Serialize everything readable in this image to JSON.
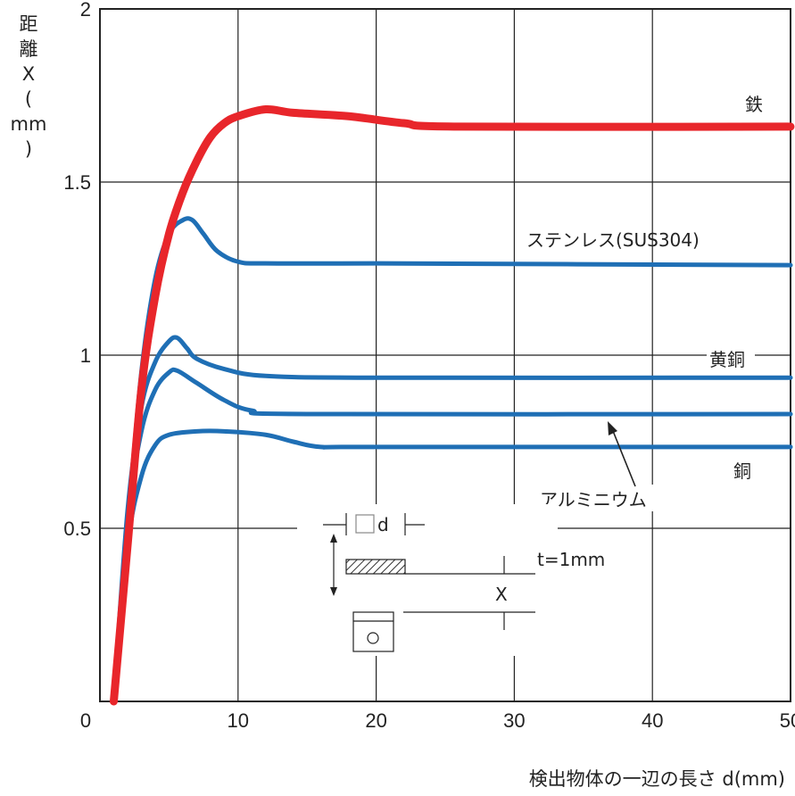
{
  "chart_data": {
    "type": "line",
    "xlabel": "検出物体の一辺の長さ d(mm)",
    "ylabel_lines": [
      "距",
      "離",
      "X",
      "(",
      "mm",
      ")"
    ],
    "xlim": [
      0,
      50
    ],
    "ylim": [
      0,
      2
    ],
    "x_ticks": [
      0,
      10,
      20,
      30,
      40,
      50
    ],
    "y_ticks": [
      {
        "v": 0.5,
        "label": "0.5"
      },
      {
        "v": 1,
        "label": "1"
      },
      {
        "v": 1.5,
        "label": "1.5"
      },
      {
        "v": 2,
        "label": "2"
      }
    ],
    "grid": true,
    "series": [
      {
        "name": "鉄",
        "color": "#e8262b",
        "points": [
          [
            1,
            0
          ],
          [
            2,
            0.45
          ],
          [
            3,
            0.9
          ],
          [
            4,
            1.17
          ],
          [
            5,
            1.35
          ],
          [
            6,
            1.47
          ],
          [
            7,
            1.56
          ],
          [
            8,
            1.63
          ],
          [
            9,
            1.67
          ],
          [
            10,
            1.69
          ],
          [
            12,
            1.71
          ],
          [
            14,
            1.7
          ],
          [
            18,
            1.69
          ],
          [
            22,
            1.67
          ],
          [
            26,
            1.66
          ],
          [
            50,
            1.66
          ]
        ]
      },
      {
        "name": "ステンレス(SUS304)",
        "color": "#1f6fb5",
        "points": [
          [
            1,
            0
          ],
          [
            2,
            0.5
          ],
          [
            3,
            0.95
          ],
          [
            4,
            1.22
          ],
          [
            5,
            1.35
          ],
          [
            6,
            1.39
          ],
          [
            6.7,
            1.39
          ],
          [
            7.5,
            1.35
          ],
          [
            8.5,
            1.3
          ],
          [
            10,
            1.27
          ],
          [
            12,
            1.265
          ],
          [
            20,
            1.265
          ],
          [
            50,
            1.26
          ]
        ]
      },
      {
        "name": "黄銅",
        "color": "#1f6fb5",
        "points": [
          [
            1,
            0
          ],
          [
            2,
            0.55
          ],
          [
            3,
            0.85
          ],
          [
            4,
            0.98
          ],
          [
            5,
            1.04
          ],
          [
            5.6,
            1.05
          ],
          [
            6.3,
            1.02
          ],
          [
            7,
            0.99
          ],
          [
            9,
            0.96
          ],
          [
            12,
            0.94
          ],
          [
            20,
            0.935
          ],
          [
            50,
            0.935
          ]
        ]
      },
      {
        "name": "アルミニウム",
        "color": "#1f6fb5",
        "points": [
          [
            1,
            0
          ],
          [
            2,
            0.52
          ],
          [
            3,
            0.78
          ],
          [
            4,
            0.9
          ],
          [
            5,
            0.95
          ],
          [
            5.6,
            0.955
          ],
          [
            7,
            0.92
          ],
          [
            9,
            0.87
          ],
          [
            11,
            0.84
          ],
          [
            15,
            0.83
          ],
          [
            50,
            0.83
          ]
        ]
      },
      {
        "name": "銅",
        "color": "#1f6fb5",
        "points": [
          [
            1,
            0
          ],
          [
            2,
            0.45
          ],
          [
            3,
            0.65
          ],
          [
            4,
            0.74
          ],
          [
            5,
            0.77
          ],
          [
            7,
            0.78
          ],
          [
            9,
            0.78
          ],
          [
            12,
            0.77
          ],
          [
            14,
            0.75
          ],
          [
            16,
            0.735
          ],
          [
            20,
            0.735
          ],
          [
            50,
            0.735
          ]
        ]
      }
    ],
    "annotations": {
      "diagram_d": "d",
      "diagram_t": "t=1mm",
      "diagram_x": "X"
    }
  }
}
